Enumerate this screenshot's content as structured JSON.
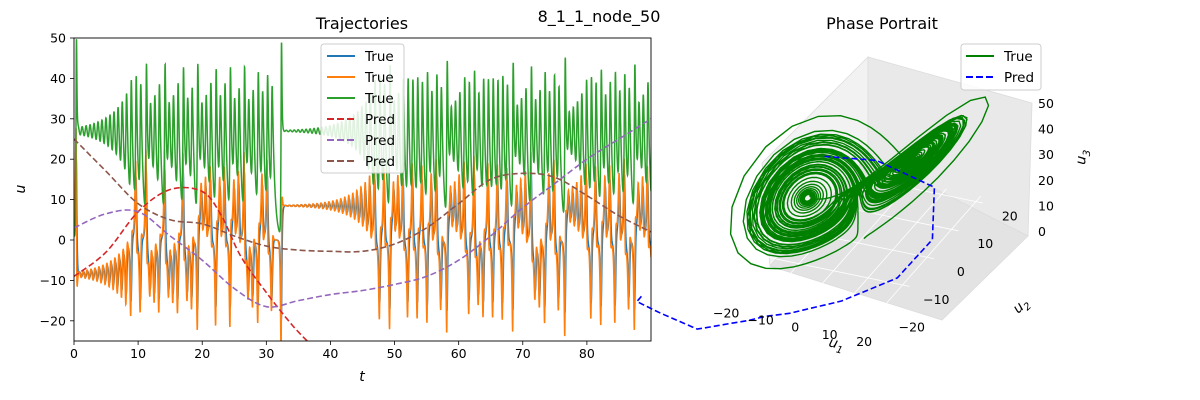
{
  "figure_title": "8_1_1_node_50",
  "colors": {
    "series1": "#1f77b4",
    "series2": "#ff7f0e",
    "series3": "#2ca02c",
    "pred1": "#d62728",
    "pred2": "#9467bd",
    "pred3": "#8c564b",
    "phase_true": "#008000",
    "phase_pred": "#0000ff"
  },
  "chart_data": [
    {
      "type": "line",
      "title": "Trajectories",
      "xlabel": "t",
      "ylabel": "u",
      "xlim": [
        0,
        90
      ],
      "ylim": [
        -25,
        50
      ],
      "xticks": [
        0,
        10,
        20,
        30,
        40,
        50,
        60,
        70,
        80
      ],
      "yticks": [
        -20,
        -10,
        0,
        10,
        20,
        30,
        40,
        50
      ],
      "legend": {
        "placement": "upper center",
        "entries": [
          "True",
          "True",
          "True",
          "Pred",
          "Pred",
          "Pred"
        ]
      },
      "series": [
        {
          "name": "True",
          "style": "solid",
          "description": "x-component of chaotic trajectory, oscillating roughly -20 to 20",
          "approx_range": [
            -22,
            20
          ]
        },
        {
          "name": "True",
          "style": "solid",
          "description": "y-component of chaotic trajectory, oscillating roughly -25 to 25",
          "approx_range": [
            -26,
            26
          ]
        },
        {
          "name": "True",
          "style": "solid",
          "description": "z-component of chaotic trajectory, oscillating roughly 5 to 45",
          "approx_range": [
            5,
            46
          ]
        },
        {
          "name": "Pred",
          "style": "dashed",
          "x": [
            0,
            5,
            10,
            15,
            20,
            23,
            26,
            30,
            34,
            37
          ],
          "values": [
            -9,
            -3,
            7,
            12.5,
            12,
            6,
            -4,
            -13,
            -21,
            -26
          ]
        },
        {
          "name": "Pred",
          "style": "dashed",
          "x": [
            0,
            5,
            10,
            15,
            20,
            25,
            30,
            35,
            40,
            45,
            50,
            55,
            60,
            65,
            70,
            75,
            80,
            85,
            90
          ],
          "values": [
            3,
            6.5,
            7,
            1,
            -5,
            -12,
            -16.5,
            -15,
            -13.5,
            -12.5,
            -11,
            -9,
            -5,
            1,
            8,
            14,
            20,
            25,
            30
          ]
        },
        {
          "name": "Pred",
          "style": "dashed",
          "x": [
            0,
            5,
            10,
            15,
            20,
            25,
            30,
            35,
            40,
            45,
            50,
            55,
            60,
            65,
            70,
            75,
            80,
            85,
            90
          ],
          "values": [
            25,
            17,
            9,
            5,
            4,
            1,
            -1.5,
            -2.5,
            -2.8,
            -2.8,
            -1,
            3,
            9,
            15,
            16.5,
            15.5,
            11,
            6,
            2
          ]
        }
      ]
    },
    {
      "type": "line3d",
      "title": "Phase Portrait",
      "xlabel": "u1",
      "ylabel": "u2",
      "zlabel": "u3",
      "xticks": [
        -20,
        -10,
        0,
        10,
        20
      ],
      "yticks": [
        -20,
        -10,
        0,
        10,
        20
      ],
      "zticks": [
        0,
        10,
        20,
        30,
        40,
        50
      ],
      "legend": {
        "placement": "upper right",
        "entries": [
          "True",
          "Pred"
        ]
      },
      "series": [
        {
          "name": "True",
          "style": "solid",
          "description": "Lorenz-style butterfly attractor with two lobes"
        },
        {
          "name": "Pred",
          "style": "dashed",
          "description": "Predicted trajectory curving away from attractor near the floor"
        }
      ]
    }
  ]
}
